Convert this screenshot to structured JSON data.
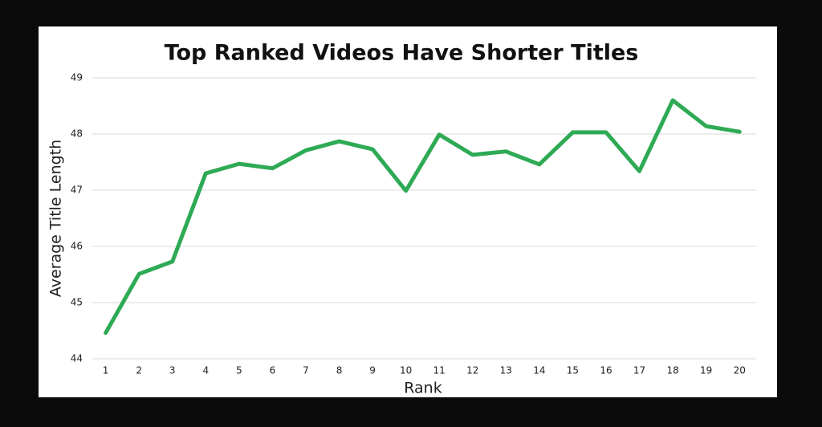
{
  "chart_data": {
    "type": "line",
    "title": "Top Ranked Videos Have Shorter Titles",
    "x_label": "Rank",
    "y_label": "Average Title Length",
    "x": [
      1,
      2,
      3,
      4,
      5,
      6,
      7,
      8,
      9,
      10,
      11,
      12,
      13,
      14,
      15,
      16,
      17,
      18,
      19,
      20
    ],
    "series": [
      {
        "name": "Average Title Length",
        "color": "#2eaa55",
        "values": [
          44.46,
          45.51,
          45.73,
          47.3,
          47.47,
          47.39,
          47.71,
          47.87,
          47.73,
          46.99,
          47.99,
          47.63,
          47.69,
          47.46,
          48.03,
          48.03,
          47.34,
          48.6,
          48.14,
          48.04
        ]
      }
    ],
    "xlim": [
      0.6,
      20.5
    ],
    "ylim": [
      44,
      49
    ],
    "xticks": [
      1,
      2,
      3,
      4,
      5,
      6,
      7,
      8,
      9,
      10,
      11,
      12,
      13,
      14,
      15,
      16,
      17,
      18,
      19,
      20
    ],
    "yticks": [
      44,
      45,
      46,
      47,
      48,
      49
    ],
    "grid": true
  }
}
